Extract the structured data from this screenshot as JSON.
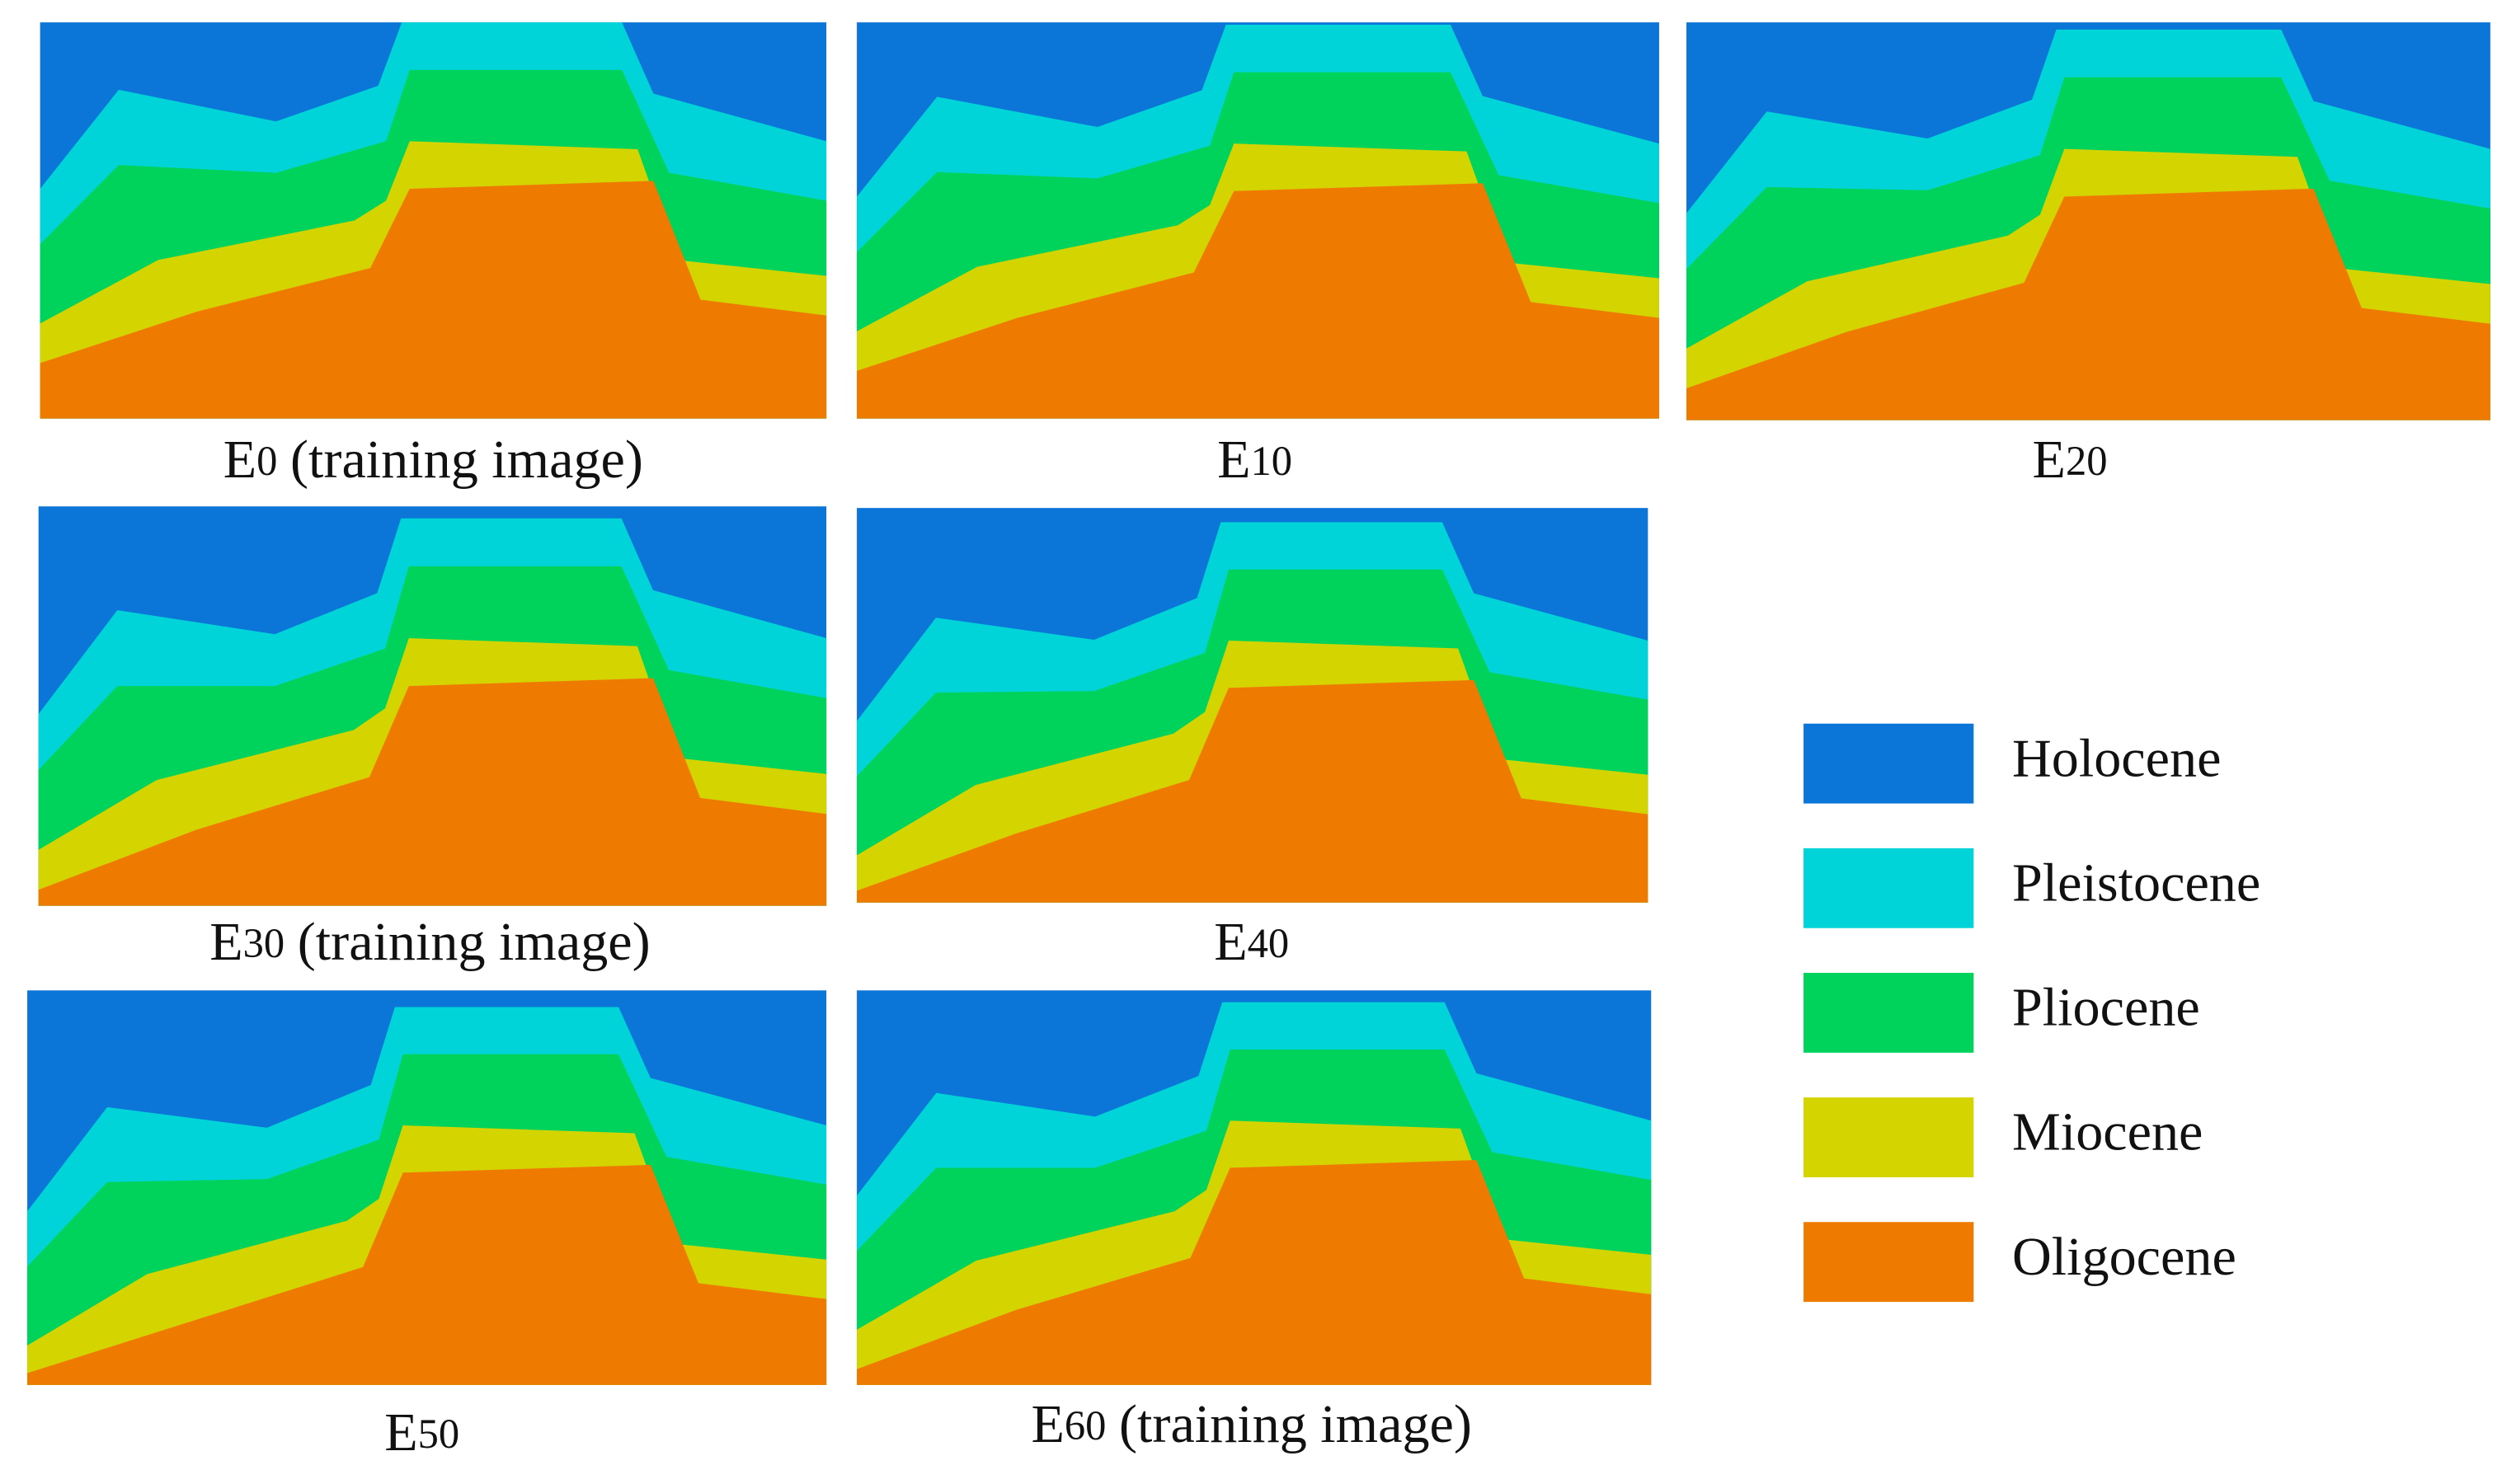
{
  "panels": [
    {
      "label": {
        "base": "E",
        "sub": "0",
        "suffix": "(training image)"
      }
    },
    {
      "label": {
        "base": "E",
        "sub": "10"
      }
    },
    {
      "label": {
        "base": "E",
        "sub": "20"
      }
    },
    {
      "label": {
        "base": "E",
        "sub": "30",
        "suffix": "(training image)"
      }
    },
    {
      "label": {
        "base": "E",
        "sub": "40"
      }
    },
    {
      "label": {
        "base": "E",
        "sub": "50"
      }
    },
    {
      "label": {
        "base": "E",
        "sub": "60",
        "suffix": "(training image)"
      }
    }
  ],
  "legend": [
    {
      "label": "Holocene",
      "color": "#0b76d8"
    },
    {
      "label": "Pleistocene",
      "color": "#00d4d8"
    },
    {
      "label": "Pliocene",
      "color": "#00d35c"
    },
    {
      "label": "Miocene",
      "color": "#d4d400"
    },
    {
      "label": "Oligocene",
      "color": "#ef7a00"
    }
  ]
}
